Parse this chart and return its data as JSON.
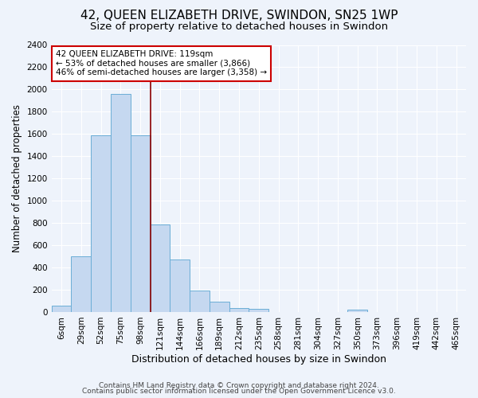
{
  "title": "42, QUEEN ELIZABETH DRIVE, SWINDON, SN25 1WP",
  "subtitle": "Size of property relative to detached houses in Swindon",
  "xlabel": "Distribution of detached houses by size in Swindon",
  "ylabel": "Number of detached properties",
  "categories": [
    "6sqm",
    "29sqm",
    "52sqm",
    "75sqm",
    "98sqm",
    "121sqm",
    "144sqm",
    "166sqm",
    "189sqm",
    "212sqm",
    "235sqm",
    "258sqm",
    "281sqm",
    "304sqm",
    "327sqm",
    "350sqm",
    "373sqm",
    "396sqm",
    "419sqm",
    "442sqm",
    "465sqm"
  ],
  "values": [
    60,
    500,
    1590,
    1960,
    1590,
    790,
    470,
    195,
    90,
    35,
    27,
    0,
    0,
    0,
    0,
    20,
    0,
    0,
    0,
    0,
    0
  ],
  "bar_color": "#c5d8f0",
  "bar_edge_color": "#6baed6",
  "vline_x_index": 4.5,
  "vline_color": "#8b0000",
  "annotation_line1": "42 QUEEN ELIZABETH DRIVE: 119sqm",
  "annotation_line2": "← 53% of detached houses are smaller (3,866)",
  "annotation_line3": "46% of semi-detached houses are larger (3,358) →",
  "annotation_box_color": "white",
  "annotation_box_edge": "#cc0000",
  "ylim": [
    0,
    2400
  ],
  "yticks": [
    0,
    200,
    400,
    600,
    800,
    1000,
    1200,
    1400,
    1600,
    1800,
    2000,
    2200,
    2400
  ],
  "footer1": "Contains HM Land Registry data © Crown copyright and database right 2024.",
  "footer2": "Contains public sector information licensed under the Open Government Licence v3.0.",
  "bg_color": "#eef3fb",
  "plot_bg_color": "#eef3fb",
  "grid_color": "#ffffff",
  "title_fontsize": 11,
  "subtitle_fontsize": 9.5,
  "xlabel_fontsize": 9,
  "ylabel_fontsize": 8.5,
  "tick_fontsize": 7.5,
  "annotation_fontsize": 7.5,
  "footer_fontsize": 6.5
}
